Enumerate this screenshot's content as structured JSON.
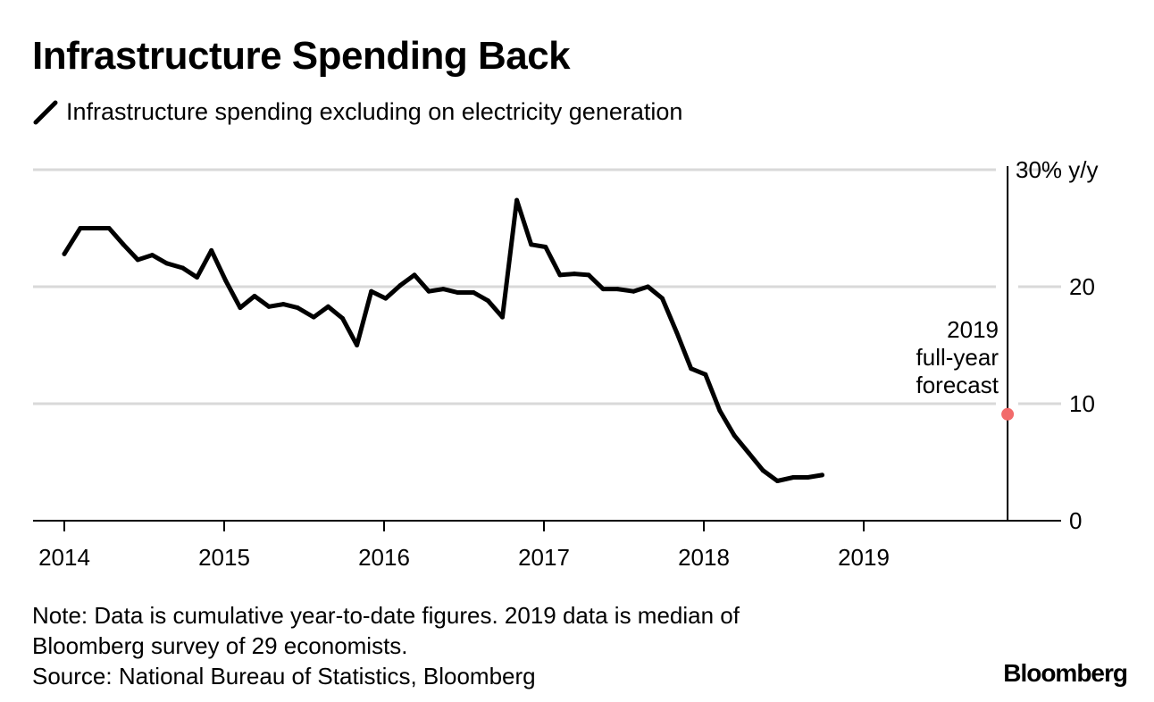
{
  "title": "Infrastructure Spending Back",
  "legend": {
    "label": "Infrastructure spending excluding on electricity generation",
    "icon": "line-icon"
  },
  "colors": {
    "line": "#000000",
    "grid": "#d9d9d9",
    "forecast": "#f26b6b",
    "axis": "#000000"
  },
  "chart_data": {
    "type": "line",
    "title": "Infrastructure Spending Back",
    "xlabel": "",
    "ylabel": "% y/y",
    "ylim": [
      0,
      30
    ],
    "xlim": [
      2013.8,
      2019.9
    ],
    "yticks": [
      {
        "value": 0,
        "label": "0"
      },
      {
        "value": 10,
        "label": "10"
      },
      {
        "value": 20,
        "label": "20"
      },
      {
        "value": 30,
        "label": "30% y/y"
      }
    ],
    "xticks": [
      {
        "value": 2014,
        "label": "2014"
      },
      {
        "value": 2015,
        "label": "2015"
      },
      {
        "value": 2016,
        "label": "2016"
      },
      {
        "value": 2017,
        "label": "2017"
      },
      {
        "value": 2018,
        "label": "2018"
      },
      {
        "value": 2019,
        "label": "2019"
      }
    ],
    "series": [
      {
        "name": "Infrastructure spending excluding on electricity generation",
        "points": [
          [
            2014.0,
            22.8
          ],
          [
            2014.1,
            25.0
          ],
          [
            2014.28,
            25.0
          ],
          [
            2014.37,
            23.6
          ],
          [
            2014.46,
            22.3
          ],
          [
            2014.55,
            22.7
          ],
          [
            2014.64,
            22.0
          ],
          [
            2014.74,
            21.6
          ],
          [
            2014.83,
            20.8
          ],
          [
            2014.92,
            23.1
          ],
          [
            2015.01,
            20.5
          ],
          [
            2015.1,
            18.2
          ],
          [
            2015.19,
            19.2
          ],
          [
            2015.28,
            18.3
          ],
          [
            2015.37,
            18.5
          ],
          [
            2015.46,
            18.2
          ],
          [
            2015.56,
            17.4
          ],
          [
            2015.65,
            18.3
          ],
          [
            2015.74,
            17.3
          ],
          [
            2015.83,
            15.0
          ],
          [
            2015.92,
            19.6
          ],
          [
            2016.01,
            19.0
          ],
          [
            2016.1,
            20.1
          ],
          [
            2016.19,
            21.0
          ],
          [
            2016.28,
            19.6
          ],
          [
            2016.37,
            19.8
          ],
          [
            2016.46,
            19.5
          ],
          [
            2016.56,
            19.5
          ],
          [
            2016.65,
            18.8
          ],
          [
            2016.74,
            17.4
          ],
          [
            2016.83,
            27.4
          ],
          [
            2016.92,
            23.6
          ],
          [
            2017.01,
            23.4
          ],
          [
            2017.1,
            21.0
          ],
          [
            2017.19,
            21.1
          ],
          [
            2017.28,
            21.0
          ],
          [
            2017.37,
            19.8
          ],
          [
            2017.46,
            19.8
          ],
          [
            2017.56,
            19.6
          ],
          [
            2017.65,
            20.0
          ],
          [
            2017.74,
            19.0
          ],
          [
            2017.83,
            16.1
          ],
          [
            2017.92,
            13.0
          ],
          [
            2018.01,
            12.5
          ],
          [
            2018.1,
            9.4
          ],
          [
            2018.19,
            7.3
          ],
          [
            2018.28,
            5.8
          ],
          [
            2018.37,
            4.3
          ],
          [
            2018.46,
            3.4
          ],
          [
            2018.56,
            3.7
          ],
          [
            2018.65,
            3.7
          ],
          [
            2018.74,
            3.9
          ]
        ]
      }
    ],
    "forecast": {
      "x": 2019.9,
      "value": 9.1,
      "label_lines": [
        "2019",
        "full-year",
        "forecast"
      ]
    }
  },
  "footer": {
    "note_line1": "Note: Data is cumulative year-to-date figures. 2019 data is median of",
    "note_line2": "Bloomberg survey of 29 economists.",
    "source": "Source: National Bureau of Statistics, Bloomberg"
  },
  "brand": "Bloomberg"
}
